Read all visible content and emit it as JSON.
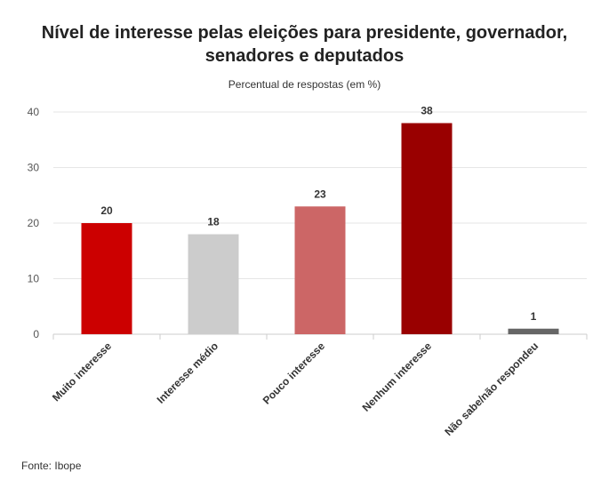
{
  "chart_data": {
    "type": "bar",
    "title_line1": "Nível de interesse pelas eleições para presidente, governador,",
    "title_line2": "senadores e deputados",
    "subtitle": "Percentual de respostas (em %)",
    "source": "Fonte: Ibope",
    "categories": [
      "Muito interesse",
      "Interesse médio",
      "Pouco interesse",
      "Nenhum interesse",
      "Não sabe/não respondeu"
    ],
    "values": [
      20,
      18,
      23,
      38,
      1
    ],
    "value_labels": [
      "20",
      "18",
      "23",
      "38",
      "1"
    ],
    "colors": [
      "#cc0000",
      "#cccccc",
      "#cc6666",
      "#990000",
      "#666666"
    ],
    "yticks": [
      "0",
      "10",
      "20",
      "30",
      "40"
    ],
    "ylim": [
      0,
      40
    ],
    "grid": true,
    "xlabel": "",
    "ylabel": ""
  }
}
